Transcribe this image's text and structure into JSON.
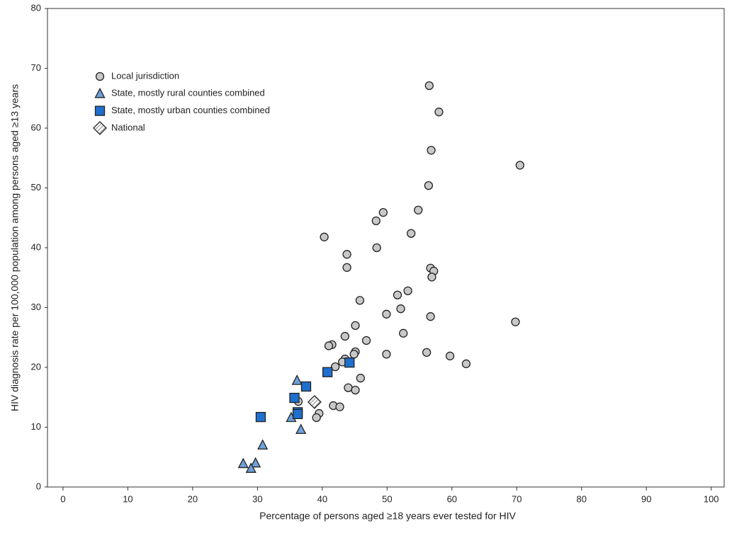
{
  "chart_data": {
    "type": "scatter",
    "x_label": "Percentage of persons aged ≥18 years ever tested for HIV",
    "y_label": "HIV diagnosis rate per 100,000 population among persons aged ≥13 years",
    "xlim": [
      -2.4,
      102
    ],
    "ylim": [
      0,
      80
    ],
    "xticks": [
      0,
      10,
      20,
      30,
      40,
      50,
      60,
      70,
      80,
      90,
      100
    ],
    "yticks": [
      0,
      10,
      20,
      30,
      40,
      50,
      60,
      70,
      80
    ],
    "legend": "upper left",
    "series": [
      {
        "name": "Local jurisdiction",
        "marker": "circle",
        "color": "#c8c8c8",
        "x": [
          56.5,
          58.0,
          56.8,
          70.5,
          56.4,
          54.8,
          49.4,
          48.3,
          53.7,
          40.3,
          43.8,
          48.4,
          43.8,
          56.7,
          57.2,
          56.9,
          53.2,
          51.6,
          45.8,
          52.1,
          49.9,
          56.7,
          69.8,
          45.1,
          52.5,
          43.5,
          46.8,
          41.5,
          41.0,
          56.1,
          49.9,
          45.1,
          44.9,
          59.7,
          43.5,
          43.1,
          62.2,
          42.0,
          45.9,
          44.0,
          45.1,
          36.3,
          41.7,
          42.7,
          39.5,
          39.1
        ],
        "values": [
          67.1,
          62.7,
          56.3,
          53.8,
          50.4,
          46.3,
          45.9,
          44.5,
          42.4,
          41.8,
          38.9,
          40.0,
          36.7,
          36.6,
          36.1,
          35.1,
          32.8,
          32.1,
          31.2,
          29.8,
          28.9,
          28.5,
          27.6,
          27.0,
          25.7,
          25.2,
          24.5,
          23.8,
          23.6,
          22.5,
          22.2,
          22.6,
          22.2,
          21.9,
          21.4,
          20.9,
          20.6,
          20.1,
          18.2,
          16.6,
          16.2,
          14.3,
          13.6,
          13.4,
          12.3,
          11.6
        ]
      },
      {
        "name": "State, mostly rural counties combined",
        "marker": "triangle",
        "color": "#6fa0d8",
        "x": [
          36.1,
          35.2,
          36.7,
          30.8,
          27.8,
          29.7,
          29.0
        ],
        "values": [
          17.8,
          11.6,
          9.6,
          7.0,
          3.9,
          4.0,
          3.1
        ]
      },
      {
        "name": "State, mostly urban counties combined",
        "marker": "square",
        "color": "#1f6fce",
        "x": [
          44.2,
          40.8,
          37.5,
          35.7,
          36.2,
          36.2,
          30.5
        ],
        "values": [
          20.8,
          19.2,
          16.8,
          14.9,
          12.5,
          12.2,
          11.7
        ]
      },
      {
        "name": "National",
        "marker": "diamond",
        "color": "url(#hatch)",
        "x": [
          38.8
        ],
        "values": [
          14.2
        ]
      }
    ]
  }
}
